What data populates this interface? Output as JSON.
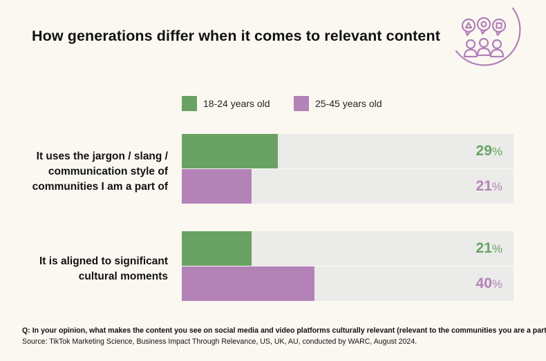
{
  "title": "How generations differ when it comes to relevant content",
  "logo": {
    "icon": "people-speech-bubbles-icon",
    "color": "#b07fb8"
  },
  "colors": {
    "green": "#6aa264",
    "purple": "#b383b8",
    "track": "#ebebe9"
  },
  "chart_data": {
    "type": "bar",
    "orientation": "horizontal",
    "title": "How generations differ when it comes to relevant content",
    "categories": [
      "It uses the jargon / slang / communication style of communities I am a part of",
      "It is aligned to significant cultural moments"
    ],
    "category_lines": [
      [
        "It uses the jargon / slang /",
        "communication style of",
        "communities I am a part of"
      ],
      [
        "It is aligned to significant",
        "cultural moments"
      ]
    ],
    "series": [
      {
        "name": "18-24 years old",
        "color": "#6aa264",
        "values": [
          29,
          21
        ]
      },
      {
        "name": "25-45 years old",
        "color": "#b383b8",
        "values": [
          21,
          40
        ]
      }
    ],
    "value_suffix": "%",
    "xlim": [
      0,
      100
    ],
    "legend_position": "top",
    "grid": false
  },
  "footnote": {
    "question": "Q: In your opinion, what makes the content you see on social media and video platforms culturally relevant (relevant to the communities you are a part of)?",
    "source": "Source: TikTok Marketing Science, Business Impact Through Relevance, US, UK, AU, conducted by WARC, August 2024."
  }
}
